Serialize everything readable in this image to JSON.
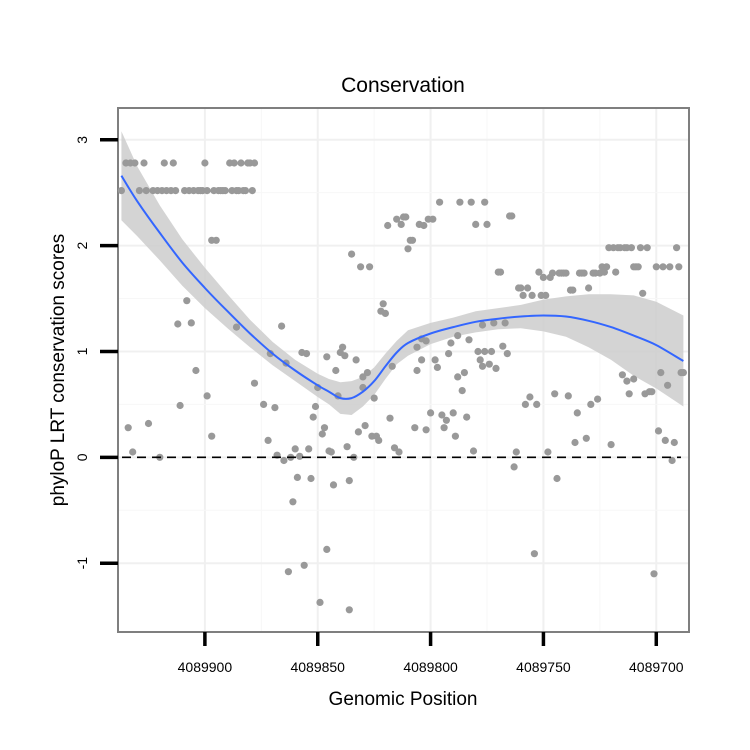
{
  "chart_data": {
    "type": "scatter",
    "title": "Conservation",
    "xlabel": "Genomic Position",
    "ylabel": "phyloP LRT conservation scores",
    "x_reversed": true,
    "xlim": [
      4089938.5,
      4089685.5
    ],
    "ylim": [
      -1.65,
      3.3
    ],
    "x_ticks": [
      4089900,
      4089850,
      4089800,
      4089750,
      4089700
    ],
    "x_tick_labels": [
      "4089900",
      "4089850",
      "4089800",
      "4089750",
      "4089700"
    ],
    "y_ticks": [
      -1,
      0,
      1,
      2,
      3
    ],
    "y_tick_labels": [
      "-1",
      "0",
      "1",
      "2",
      "3"
    ],
    "grid": true,
    "reference_line": {
      "y": 0,
      "style": "dashed"
    },
    "point_color": "#999999",
    "smooth_color": "#3366FF",
    "ribbon_color": "#CCCCCC",
    "points": [
      [
        4089937,
        2.52
      ],
      [
        4089935,
        2.78
      ],
      [
        4089933,
        2.78
      ],
      [
        4089931,
        2.78
      ],
      [
        4089934,
        0.28
      ],
      [
        4089932,
        0.05
      ],
      [
        4089929,
        2.52
      ],
      [
        4089927,
        2.78
      ],
      [
        4089926,
        2.52
      ],
      [
        4089925,
        0.32
      ],
      [
        4089923,
        2.52
      ],
      [
        4089921,
        2.52
      ],
      [
        4089920,
        0.0
      ],
      [
        4089919,
        2.52
      ],
      [
        4089918,
        2.78
      ],
      [
        4089917,
        2.52
      ],
      [
        4089915,
        2.52
      ],
      [
        4089914,
        2.78
      ],
      [
        4089913,
        2.52
      ],
      [
        4089912,
        1.26
      ],
      [
        4089911,
        0.49
      ],
      [
        4089909,
        2.52
      ],
      [
        4089908,
        1.48
      ],
      [
        4089907,
        2.52
      ],
      [
        4089906,
        1.27
      ],
      [
        4089905,
        2.52
      ],
      [
        4089904,
        0.82
      ],
      [
        4089903,
        2.52
      ],
      [
        4089902,
        2.52
      ],
      [
        4089901,
        2.52
      ],
      [
        4089900,
        2.78
      ],
      [
        4089899,
        2.52
      ],
      [
        4089897,
        2.05
      ],
      [
        4089896,
        2.52
      ],
      [
        4089895,
        2.05
      ],
      [
        4089894,
        2.52
      ],
      [
        4089893,
        2.52
      ],
      [
        4089892,
        2.52
      ],
      [
        4089891,
        2.52
      ],
      [
        4089889,
        2.78
      ],
      [
        4089888,
        2.52
      ],
      [
        4089887,
        2.78
      ],
      [
        4089886,
        2.52
      ],
      [
        4089885,
        2.52
      ],
      [
        4089884,
        2.78
      ],
      [
        4089883,
        2.52
      ],
      [
        4089882,
        2.52
      ],
      [
        4089881,
        2.78
      ],
      [
        4089880,
        2.78
      ],
      [
        4089879,
        2.52
      ],
      [
        4089878,
        0.7
      ],
      [
        4089878,
        2.78
      ],
      [
        4089899,
        0.58
      ],
      [
        4089897,
        0.2
      ],
      [
        4089886,
        1.23
      ],
      [
        4089874,
        0.5
      ],
      [
        4089872,
        0.16
      ],
      [
        4089871,
        0.98
      ],
      [
        4089869,
        0.47
      ],
      [
        4089868,
        0.02
      ],
      [
        4089866,
        1.24
      ],
      [
        4089865,
        -0.03
      ],
      [
        4089864,
        0.89
      ],
      [
        4089863,
        -1.08
      ],
      [
        4089862,
        0.0
      ],
      [
        4089861,
        -0.42
      ],
      [
        4089860,
        0.08
      ],
      [
        4089859,
        -0.19
      ],
      [
        4089858,
        0.01
      ],
      [
        4089857,
        0.99
      ],
      [
        4089856,
        -1.02
      ],
      [
        4089855,
        0.98
      ],
      [
        4089854,
        0.08
      ],
      [
        4089853,
        -0.2
      ],
      [
        4089852,
        0.38
      ],
      [
        4089851,
        0.48
      ],
      [
        4089850,
        0.66
      ],
      [
        4089849,
        -1.37
      ],
      [
        4089848,
        0.22
      ],
      [
        4089847,
        0.28
      ],
      [
        4089846,
        0.95
      ],
      [
        4089846,
        -0.87
      ],
      [
        4089845,
        0.06
      ],
      [
        4089844,
        0.05
      ],
      [
        4089843,
        -0.26
      ],
      [
        4089842,
        0.82
      ],
      [
        4089841,
        0.58
      ],
      [
        4089840,
        0.99
      ],
      [
        4089839,
        1.04
      ],
      [
        4089838,
        0.96
      ],
      [
        4089837,
        0.1
      ],
      [
        4089836,
        -1.44
      ],
      [
        4089836,
        -0.22
      ],
      [
        4089835,
        1.92
      ],
      [
        4089834,
        0.0
      ],
      [
        4089833,
        0.92
      ],
      [
        4089832,
        0.24
      ],
      [
        4089831,
        1.8
      ],
      [
        4089830,
        0.66
      ],
      [
        4089829,
        0.3
      ],
      [
        4089828,
        0.8
      ],
      [
        4089827,
        1.8
      ],
      [
        4089826,
        0.2
      ],
      [
        4089825,
        0.56
      ],
      [
        4089824,
        0.2
      ],
      [
        4089823,
        0.16
      ],
      [
        4089822,
        1.38
      ],
      [
        4089821,
        1.45
      ],
      [
        4089820,
        1.36
      ],
      [
        4089819,
        2.19
      ],
      [
        4089818,
        0.37
      ],
      [
        4089817,
        0.86
      ],
      [
        4089816,
        0.09
      ],
      [
        4089815,
        2.25
      ],
      [
        4089814,
        0.05
      ],
      [
        4089813,
        2.2
      ],
      [
        4089812,
        2.27
      ],
      [
        4089811,
        2.27
      ],
      [
        4089810,
        1.97
      ],
      [
        4089809,
        2.05
      ],
      [
        4089808,
        2.05
      ],
      [
        4089807,
        0.28
      ],
      [
        4089806,
        0.82
      ],
      [
        4089805,
        2.2
      ],
      [
        4089804,
        1.12
      ],
      [
        4089803,
        2.19
      ],
      [
        4089802,
        1.1
      ],
      [
        4089801,
        2.25
      ],
      [
        4089800,
        0.42
      ],
      [
        4089799,
        2.25
      ],
      [
        4089798,
        0.92
      ],
      [
        4089797,
        0.85
      ],
      [
        4089796,
        2.41
      ],
      [
        4089795,
        0.4
      ],
      [
        4089794,
        0.28
      ],
      [
        4089793,
        0.35
      ],
      [
        4089792,
        0.98
      ],
      [
        4089791,
        1.08
      ],
      [
        4089790,
        0.42
      ],
      [
        4089789,
        0.2
      ],
      [
        4089788,
        1.15
      ],
      [
        4089787,
        2.41
      ],
      [
        4089786,
        0.63
      ],
      [
        4089785,
        0.8
      ],
      [
        4089784,
        0.38
      ],
      [
        4089783,
        1.11
      ],
      [
        4089782,
        2.41
      ],
      [
        4089781,
        0.06
      ],
      [
        4089780,
        2.2
      ],
      [
        4089779,
        1.0
      ],
      [
        4089778,
        0.92
      ],
      [
        4089777,
        1.25
      ],
      [
        4089776,
        2.41
      ],
      [
        4089775,
        2.2
      ],
      [
        4089774,
        0.88
      ],
      [
        4089773,
        1.0
      ],
      [
        4089772,
        1.27
      ],
      [
        4089771,
        0.84
      ],
      [
        4089770,
        1.75
      ],
      [
        4089769,
        1.75
      ],
      [
        4089768,
        1.05
      ],
      [
        4089767,
        1.27
      ],
      [
        4089766,
        0.98
      ],
      [
        4089765,
        2.28
      ],
      [
        4089764,
        2.28
      ],
      [
        4089763,
        -0.09
      ],
      [
        4089762,
        0.05
      ],
      [
        4089761,
        1.6
      ],
      [
        4089760,
        1.6
      ],
      [
        4089759,
        1.53
      ],
      [
        4089758,
        0.5
      ],
      [
        4089757,
        1.6
      ],
      [
        4089756,
        0.57
      ],
      [
        4089755,
        1.53
      ],
      [
        4089754,
        -0.91
      ],
      [
        4089753,
        0.5
      ],
      [
        4089752,
        1.75
      ],
      [
        4089751,
        1.53
      ],
      [
        4089750,
        1.7
      ],
      [
        4089749,
        1.53
      ],
      [
        4089748,
        0.05
      ],
      [
        4089747,
        1.7
      ],
      [
        4089746,
        1.74
      ],
      [
        4089745,
        0.6
      ],
      [
        4089744,
        -0.2
      ],
      [
        4089743,
        1.74
      ],
      [
        4089742,
        1.74
      ],
      [
        4089741,
        1.74
      ],
      [
        4089740,
        1.74
      ],
      [
        4089739,
        0.58
      ],
      [
        4089738,
        1.58
      ],
      [
        4089737,
        1.58
      ],
      [
        4089736,
        0.14
      ],
      [
        4089735,
        0.42
      ],
      [
        4089734,
        1.74
      ],
      [
        4089733,
        1.74
      ],
      [
        4089732,
        1.74
      ],
      [
        4089731,
        0.18
      ],
      [
        4089730,
        1.6
      ],
      [
        4089729,
        0.5
      ],
      [
        4089728,
        1.74
      ],
      [
        4089727,
        1.74
      ],
      [
        4089726,
        0.55
      ],
      [
        4089725,
        1.74
      ],
      [
        4089724,
        1.8
      ],
      [
        4089723,
        1.75
      ],
      [
        4089722,
        1.8
      ],
      [
        4089721,
        1.98
      ],
      [
        4089720,
        0.12
      ],
      [
        4089719,
        1.98
      ],
      [
        4089718,
        1.75
      ],
      [
        4089717,
        1.98
      ],
      [
        4089716,
        1.98
      ],
      [
        4089715,
        0.78
      ],
      [
        4089714,
        1.98
      ],
      [
        4089713,
        1.98
      ],
      [
        4089712,
        0.6
      ],
      [
        4089711,
        1.98
      ],
      [
        4089710,
        0.74
      ],
      [
        4089709,
        1.8
      ],
      [
        4089708,
        1.8
      ],
      [
        4089707,
        1.98
      ],
      [
        4089706,
        1.55
      ],
      [
        4089705,
        0.6
      ],
      [
        4089704,
        1.98
      ],
      [
        4089703,
        0.62
      ],
      [
        4089702,
        0.62
      ],
      [
        4089701,
        -1.1
      ],
      [
        4089700,
        1.8
      ],
      [
        4089699,
        0.25
      ],
      [
        4089698,
        0.8
      ],
      [
        4089697,
        1.8
      ],
      [
        4089696,
        0.16
      ],
      [
        4089695,
        0.68
      ],
      [
        4089694,
        1.8
      ],
      [
        4089693,
        -0.03
      ],
      [
        4089692,
        0.14
      ],
      [
        4089691,
        1.98
      ],
      [
        4089690,
        1.8
      ],
      [
        4089689,
        0.8
      ],
      [
        4089688,
        0.8
      ],
      [
        4089710,
        1.8
      ],
      [
        4089713,
        0.72
      ],
      [
        4089776,
        1.0
      ],
      [
        4089777,
        0.86
      ],
      [
        4089788,
        0.76
      ],
      [
        4089806,
        1.04
      ],
      [
        4089830,
        0.76
      ],
      [
        4089802,
        0.26
      ],
      [
        4089804,
        0.92
      ]
    ],
    "smooth": {
      "x": [
        4089937,
        4089930,
        4089920,
        4089910,
        4089900,
        4089890,
        4089880,
        4089870,
        4089860,
        4089850,
        4089845,
        4089840,
        4089835,
        4089830,
        4089825,
        4089820,
        4089815,
        4089810,
        4089800,
        4089790,
        4089780,
        4089770,
        4089760,
        4089750,
        4089740,
        4089730,
        4089720,
        4089710,
        4089700,
        4089688
      ],
      "y": [
        2.66,
        2.42,
        2.12,
        1.84,
        1.6,
        1.38,
        1.17,
        0.98,
        0.82,
        0.68,
        0.62,
        0.56,
        0.56,
        0.62,
        0.72,
        0.86,
        0.99,
        1.08,
        1.17,
        1.23,
        1.28,
        1.31,
        1.33,
        1.34,
        1.33,
        1.29,
        1.23,
        1.15,
        1.06,
        0.91
      ],
      "lower": [
        2.24,
        2.09,
        1.86,
        1.62,
        1.41,
        1.22,
        1.04,
        0.87,
        0.72,
        0.57,
        0.5,
        0.41,
        0.4,
        0.48,
        0.59,
        0.74,
        0.88,
        0.96,
        1.07,
        1.14,
        1.18,
        1.21,
        1.22,
        1.19,
        1.14,
        1.04,
        0.92,
        0.77,
        0.65,
        0.48
      ],
      "upper": [
        3.08,
        2.75,
        2.38,
        2.06,
        1.79,
        1.54,
        1.3,
        1.09,
        0.92,
        0.79,
        0.74,
        0.71,
        0.72,
        0.76,
        0.85,
        0.98,
        1.1,
        1.2,
        1.27,
        1.32,
        1.38,
        1.41,
        1.44,
        1.49,
        1.52,
        1.54,
        1.54,
        1.53,
        1.47,
        1.34
      ]
    }
  }
}
